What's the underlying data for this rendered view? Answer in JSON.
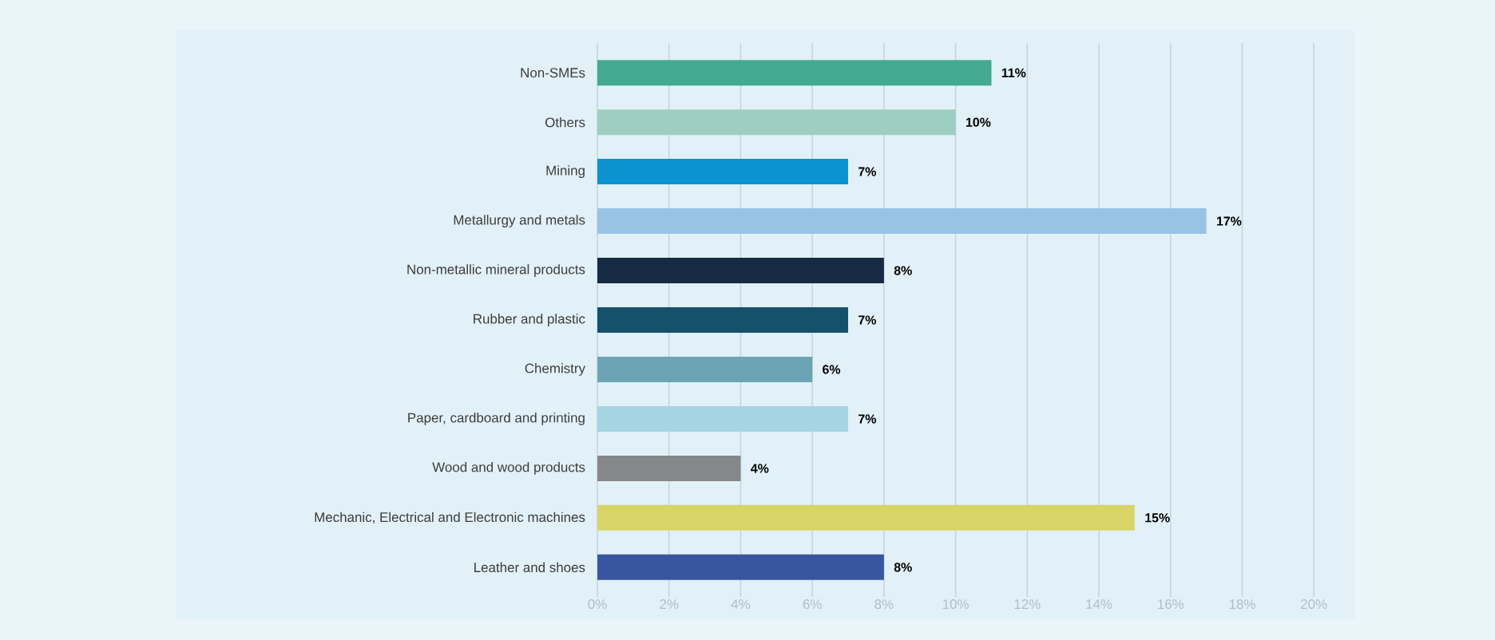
{
  "chart_data": {
    "type": "bar",
    "orientation": "horizontal",
    "categories": [
      "Non-SMEs",
      "Others",
      "Mining",
      "Metallurgy and metals",
      "Non-metallic mineral products",
      "Rubber and plastic",
      "Chemistry",
      "Paper, cardboard and printing",
      "Wood and wood products",
      "Mechanic, Electrical  and Electronic machines",
      "Leather and shoes"
    ],
    "values": [
      11,
      10,
      7,
      17,
      8,
      7,
      6,
      7,
      4,
      15,
      8
    ],
    "colors": [
      "#44aa91",
      "#9ecdc1",
      "#0b93d0",
      "#98c3e5",
      "#172a43",
      "#16516c",
      "#6da4b5",
      "#a5d4e2",
      "#858789",
      "#d8d467",
      "#3856a0"
    ],
    "value_labels": [
      "11%",
      "10%",
      "7%",
      "17%",
      "8%",
      "7%",
      "6%",
      "7%",
      "4%",
      "15%",
      "8%"
    ],
    "xlim": [
      0,
      21
    ],
    "xticks": [
      {
        "value": 0,
        "label": "0%"
      },
      {
        "value": 2,
        "label": "2%"
      },
      {
        "value": 4,
        "label": "4%"
      },
      {
        "value": 6,
        "label": "6%"
      },
      {
        "value": 8,
        "label": "8%"
      },
      {
        "value": 10,
        "label": "10%"
      },
      {
        "value": 12,
        "label": "12%"
      },
      {
        "value": 14,
        "label": "14%"
      },
      {
        "value": 16,
        "label": "16%"
      },
      {
        "value": 18,
        "label": "18%"
      },
      {
        "value": 20,
        "label": "20%"
      }
    ],
    "grid": "x"
  }
}
